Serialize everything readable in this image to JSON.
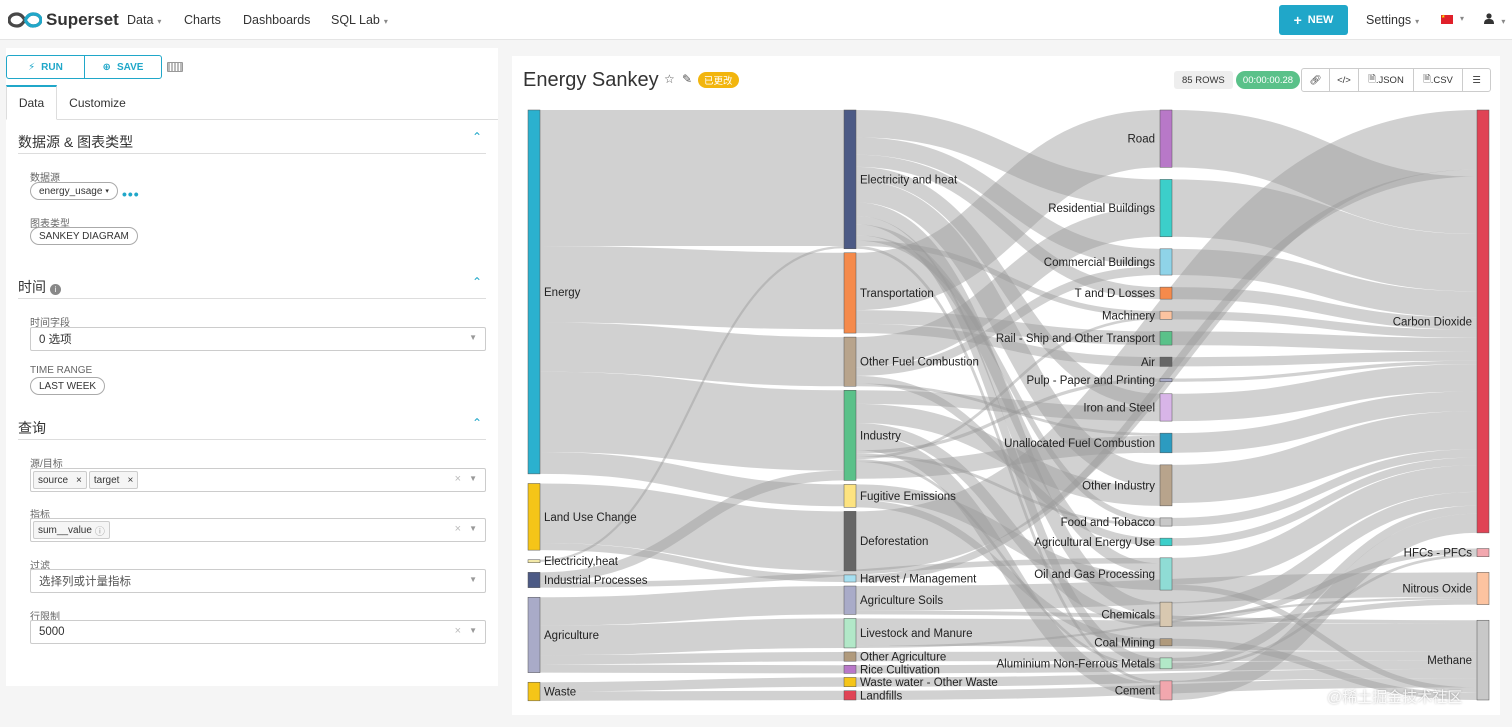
{
  "nav": {
    "brand": "Superset",
    "items": [
      "Data",
      "Charts",
      "Dashboards",
      "SQL Lab"
    ],
    "new_label": "NEW",
    "settings_label": "Settings"
  },
  "controls": {
    "run_label": "RUN",
    "save_label": "SAVE",
    "tabs": [
      "Data",
      "Customize"
    ],
    "section_datasource": "数据源 & 图表类型",
    "datasource_label": "数据源",
    "datasource_value": "energy_usage",
    "viz_label": "图表类型",
    "viz_value": "SANKEY DIAGRAM",
    "section_time": "时间",
    "time_column_label": "时间字段",
    "time_column_value": "0 选项",
    "time_range_label": "TIME RANGE",
    "time_range_value": "LAST WEEK",
    "section_query": "查询",
    "source_target_label": "源/目标",
    "source_tag": "source",
    "target_tag": "target",
    "metric_label": "指标",
    "metric_tag": "sum__value",
    "filter_label": "过滤",
    "filter_placeholder": "选择列或计量指标",
    "row_limit_label": "行限制",
    "row_limit_value": "5000"
  },
  "chart": {
    "title": "Energy Sankey",
    "badge": "已更改",
    "rows": "85 ROWS",
    "timer": "00:00:00.28",
    "json_label": ".JSON",
    "csv_label": ".CSV"
  },
  "watermark": "@稀土掘金技术社区",
  "chart_data": {
    "type": "sankey",
    "title": "Energy Sankey",
    "nodes": [
      {
        "id": "energy",
        "label": "Energy",
        "color": "#2bb1cf",
        "col": 0
      },
      {
        "id": "luc",
        "label": "Land Use Change",
        "color": "#f5c518",
        "col": 0
      },
      {
        "id": "elh",
        "label": "Electricity,heat",
        "color": "#f3e9a8",
        "col": 0
      },
      {
        "id": "ip",
        "label": "Industrial Processes",
        "color": "#4c5a85",
        "col": 0
      },
      {
        "id": "agri",
        "label": "Agriculture",
        "color": "#a9abc8",
        "col": 0
      },
      {
        "id": "waste",
        "label": "Waste",
        "color": "#f5c518",
        "col": 0
      },
      {
        "id": "eh",
        "label": "Electricity and heat",
        "color": "#4c5a85",
        "col": 1
      },
      {
        "id": "trans",
        "label": "Transportation",
        "color": "#f58a4b",
        "col": 1
      },
      {
        "id": "ofc",
        "label": "Other Fuel Combustion",
        "color": "#b8a48c",
        "col": 1
      },
      {
        "id": "ind",
        "label": "Industry",
        "color": "#5ac189",
        "col": 1
      },
      {
        "id": "fug",
        "label": "Fugitive Emissions",
        "color": "#fde380",
        "col": 1
      },
      {
        "id": "defo",
        "label": "Deforestation",
        "color": "#666666",
        "col": 1
      },
      {
        "id": "hm",
        "label": "Harvest / Management",
        "color": "#a6dff0",
        "col": 1
      },
      {
        "id": "as",
        "label": "Agriculture Soils",
        "color": "#a9abc8",
        "col": 1
      },
      {
        "id": "lm",
        "label": "Livestock and Manure",
        "color": "#b2e8c8",
        "col": 1
      },
      {
        "id": "oa",
        "label": "Other Agriculture",
        "color": "#b09a7c",
        "col": 1
      },
      {
        "id": "rice",
        "label": "Rice Cultivation",
        "color": "#b878c8",
        "col": 1
      },
      {
        "id": "wwow",
        "label": "Waste water - Other Waste",
        "color": "#f5c518",
        "col": 1
      },
      {
        "id": "lf",
        "label": "Landfills",
        "color": "#e04355",
        "col": 1
      },
      {
        "id": "road",
        "label": "Road",
        "color": "#b878c8",
        "col": 2
      },
      {
        "id": "resb",
        "label": "Residential Buildings",
        "color": "#3ccfca",
        "col": 2
      },
      {
        "id": "comb",
        "label": "Commercial Buildings",
        "color": "#8fd3e8",
        "col": 2
      },
      {
        "id": "tdl",
        "label": "T and D Losses",
        "color": "#f58a4b",
        "col": 2
      },
      {
        "id": "mach",
        "label": "Machinery",
        "color": "#fcc3a0",
        "col": 2
      },
      {
        "id": "rail",
        "label": "Rail - Ship and Other Transport",
        "color": "#5ac189",
        "col": 2
      },
      {
        "id": "air",
        "label": "Air",
        "color": "#666666",
        "col": 2
      },
      {
        "id": "pulp",
        "label": "Pulp - Paper and Printing",
        "color": "#a9abc8",
        "col": 2
      },
      {
        "id": "iron",
        "label": "Iron and Steel",
        "color": "#d8b5e8",
        "col": 2
      },
      {
        "id": "ufc",
        "label": "Unallocated Fuel Combustion",
        "color": "#2c9bc0",
        "col": 2
      },
      {
        "id": "oind",
        "label": "Other Industry",
        "color": "#b8a48c",
        "col": 2
      },
      {
        "id": "food",
        "label": "Food and Tobacco",
        "color": "#c8c8c8",
        "col": 2
      },
      {
        "id": "aeu",
        "label": "Agricultural Energy Use",
        "color": "#3ccfca",
        "col": 2
      },
      {
        "id": "ogp",
        "label": "Oil and Gas Processing",
        "color": "#8fdcd5",
        "col": 2
      },
      {
        "id": "chem",
        "label": "Chemicals",
        "color": "#d8c8b0",
        "col": 2
      },
      {
        "id": "coal",
        "label": "Coal Mining",
        "color": "#b09a7c",
        "col": 2
      },
      {
        "id": "alu",
        "label": "Aluminium Non-Ferrous Metals",
        "color": "#b2e8c8",
        "col": 2
      },
      {
        "id": "cem",
        "label": "Cement",
        "color": "#f2a7ae",
        "col": 2
      },
      {
        "id": "co2",
        "label": "Carbon Dioxide",
        "color": "#e04355",
        "col": 3
      },
      {
        "id": "hfc",
        "label": "HFCs - PFCs",
        "color": "#f2a7ae",
        "col": 3
      },
      {
        "id": "n2o",
        "label": "Nitrous Oxide",
        "color": "#fcc3a0",
        "col": 3
      },
      {
        "id": "ch4",
        "label": "Methane",
        "color": "#c8c8c8",
        "col": 3
      }
    ],
    "links": [
      [
        "energy",
        "eh",
        24.9
      ],
      [
        "energy",
        "trans",
        14
      ],
      [
        "energy",
        "ofc",
        9
      ],
      [
        "energy",
        "ind",
        14.7
      ],
      [
        "energy",
        "fug",
        4
      ],
      [
        "luc",
        "defo",
        10.9
      ],
      [
        "luc",
        "hm",
        1.3
      ],
      [
        "elh",
        "eh",
        0.4
      ],
      [
        "ip",
        "ind",
        1.8
      ],
      [
        "ip",
        "ogp",
        1
      ],
      [
        "agri",
        "as",
        5.2
      ],
      [
        "agri",
        "lm",
        5.4
      ],
      [
        "agri",
        "oa",
        1.7
      ],
      [
        "agri",
        "rice",
        1.5
      ],
      [
        "waste",
        "wwow",
        1.7
      ],
      [
        "waste",
        "lf",
        1.7
      ],
      [
        "eh",
        "resb",
        5
      ],
      [
        "eh",
        "comb",
        3.2
      ],
      [
        "eh",
        "tdl",
        2.2
      ],
      [
        "eh",
        "iron",
        2.5
      ],
      [
        "eh",
        "oind",
        4
      ],
      [
        "eh",
        "chem",
        2.5
      ],
      [
        "eh",
        "alu",
        1.5
      ],
      [
        "eh",
        "ogp",
        2
      ],
      [
        "eh",
        "food",
        1
      ],
      [
        "eh",
        "mach",
        1
      ],
      [
        "eh",
        "cem",
        0.5
      ],
      [
        "eh",
        "co2",
        0
      ],
      [
        "trans",
        "road",
        10.5
      ],
      [
        "trans",
        "rail",
        2.5
      ],
      [
        "trans",
        "air",
        1.7
      ],
      [
        "ofc",
        "resb",
        5.5
      ],
      [
        "ofc",
        "comb",
        1.6
      ],
      [
        "ofc",
        "aeu",
        1.4
      ],
      [
        "ofc",
        "ufc",
        0.5
      ],
      [
        "ind",
        "iron",
        2.5
      ],
      [
        "ind",
        "oind",
        3.5
      ],
      [
        "ind",
        "chem",
        2
      ],
      [
        "ind",
        "cem",
        3
      ],
      [
        "ind",
        "pulp",
        0.6
      ],
      [
        "ind",
        "food",
        0.5
      ],
      [
        "ind",
        "mach",
        0.5
      ],
      [
        "ind",
        "alu",
        0.5
      ],
      [
        "ind",
        "ufc",
        3.1
      ],
      [
        "fug",
        "ogp",
        2.9
      ],
      [
        "fug",
        "coal",
        1.3
      ],
      [
        "defo",
        "co2",
        10.9
      ],
      [
        "hm",
        "co2",
        1.3
      ],
      [
        "as",
        "n2o",
        4.5
      ],
      [
        "as",
        "ch4",
        0.7
      ],
      [
        "lm",
        "ch4",
        5
      ],
      [
        "lm",
        "n2o",
        0.4
      ],
      [
        "oa",
        "ch4",
        1.7
      ],
      [
        "rice",
        "ch4",
        1.5
      ],
      [
        "wwow",
        "ch4",
        1.7
      ],
      [
        "lf",
        "ch4",
        1.7
      ],
      [
        "road",
        "co2",
        10.5
      ],
      [
        "resb",
        "co2",
        10.5
      ],
      [
        "comb",
        "co2",
        4.8
      ],
      [
        "tdl",
        "co2",
        2.2
      ],
      [
        "mach",
        "co2",
        1.5
      ],
      [
        "rail",
        "co2",
        2.5
      ],
      [
        "air",
        "co2",
        1.7
      ],
      [
        "pulp",
        "co2",
        0.6
      ],
      [
        "iron",
        "co2",
        5
      ],
      [
        "ufc",
        "co2",
        3.6
      ],
      [
        "oind",
        "co2",
        7
      ],
      [
        "food",
        "co2",
        1.5
      ],
      [
        "aeu",
        "co2",
        1.4
      ],
      [
        "ogp",
        "co2",
        4.9
      ],
      [
        "ogp",
        "ch4",
        1
      ],
      [
        "chem",
        "co2",
        2.5
      ],
      [
        "chem",
        "hfc",
        1
      ],
      [
        "chem",
        "n2o",
        1
      ],
      [
        "coal",
        "ch4",
        1.3
      ],
      [
        "alu",
        "co2",
        1.5
      ],
      [
        "alu",
        "hfc",
        0.5
      ],
      [
        "cem",
        "co2",
        3.5
      ]
    ]
  }
}
